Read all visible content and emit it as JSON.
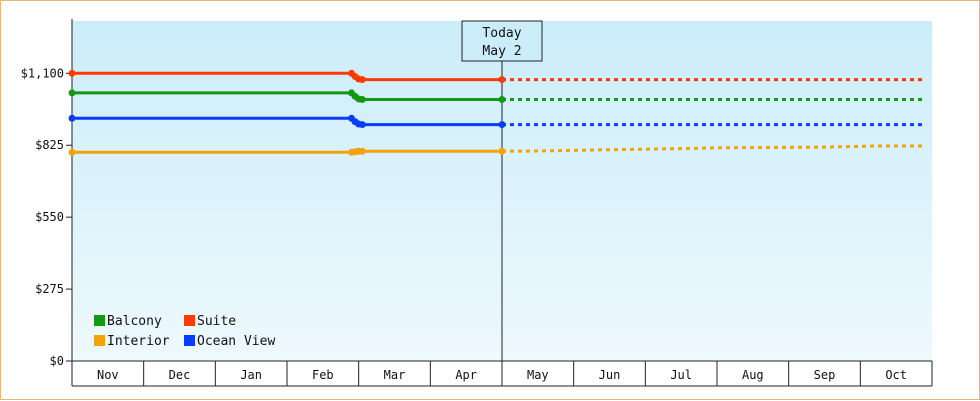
{
  "chart_data": {
    "type": "line",
    "title": "",
    "xlabel": "",
    "ylabel": "",
    "x_categories": [
      "Nov",
      "Dec",
      "Jan",
      "Feb",
      "Mar",
      "Apr",
      "May",
      "Jun",
      "Jul",
      "Aug",
      "Sep",
      "Oct"
    ],
    "y_ticks": [
      "$0",
      "$275",
      "$550",
      "$825",
      "$1,100"
    ],
    "ylim": [
      0,
      1300
    ],
    "today_marker": {
      "line1": "Today",
      "line2": "May 2",
      "x": 6.0
    },
    "legend": {
      "placement": "bottom-left"
    },
    "series": [
      {
        "name": "Balcony",
        "color": "#119911",
        "points": [
          [
            0,
            1025
          ],
          [
            3.9,
            1025
          ],
          [
            3.95,
            1012
          ],
          [
            4.0,
            1002
          ],
          [
            4.05,
            1000
          ],
          [
            6.0,
            1000
          ]
        ],
        "forecast": [
          [
            6.0,
            1000
          ],
          [
            11.9,
            1000
          ]
        ]
      },
      {
        "name": "Suite",
        "color": "#ff3a00",
        "points": [
          [
            0,
            1100
          ],
          [
            3.9,
            1100
          ],
          [
            3.95,
            1088
          ],
          [
            4.0,
            1078
          ],
          [
            4.05,
            1076
          ],
          [
            6.0,
            1076
          ]
        ],
        "forecast": [
          [
            6.0,
            1076
          ],
          [
            11.9,
            1076
          ]
        ]
      },
      {
        "name": "Interior",
        "color": "#f5a20a",
        "points": [
          [
            0,
            798
          ],
          [
            3.9,
            798
          ],
          [
            3.95,
            800
          ],
          [
            4.0,
            802
          ],
          [
            4.05,
            802
          ],
          [
            6.0,
            802
          ]
        ],
        "forecast": [
          [
            6.0,
            802
          ],
          [
            6.5,
            803
          ],
          [
            7.5,
            808
          ],
          [
            8.5,
            812
          ],
          [
            9.0,
            815
          ],
          [
            10.5,
            818
          ],
          [
            11.2,
            822
          ],
          [
            11.9,
            822
          ]
        ]
      },
      {
        "name": "Ocean View",
        "color": "#0a3cff",
        "points": [
          [
            0,
            928
          ],
          [
            3.9,
            928
          ],
          [
            3.95,
            915
          ],
          [
            4.0,
            906
          ],
          [
            4.05,
            904
          ],
          [
            6.0,
            904
          ]
        ],
        "forecast": [
          [
            6.0,
            904
          ],
          [
            11.9,
            904
          ]
        ]
      }
    ]
  }
}
